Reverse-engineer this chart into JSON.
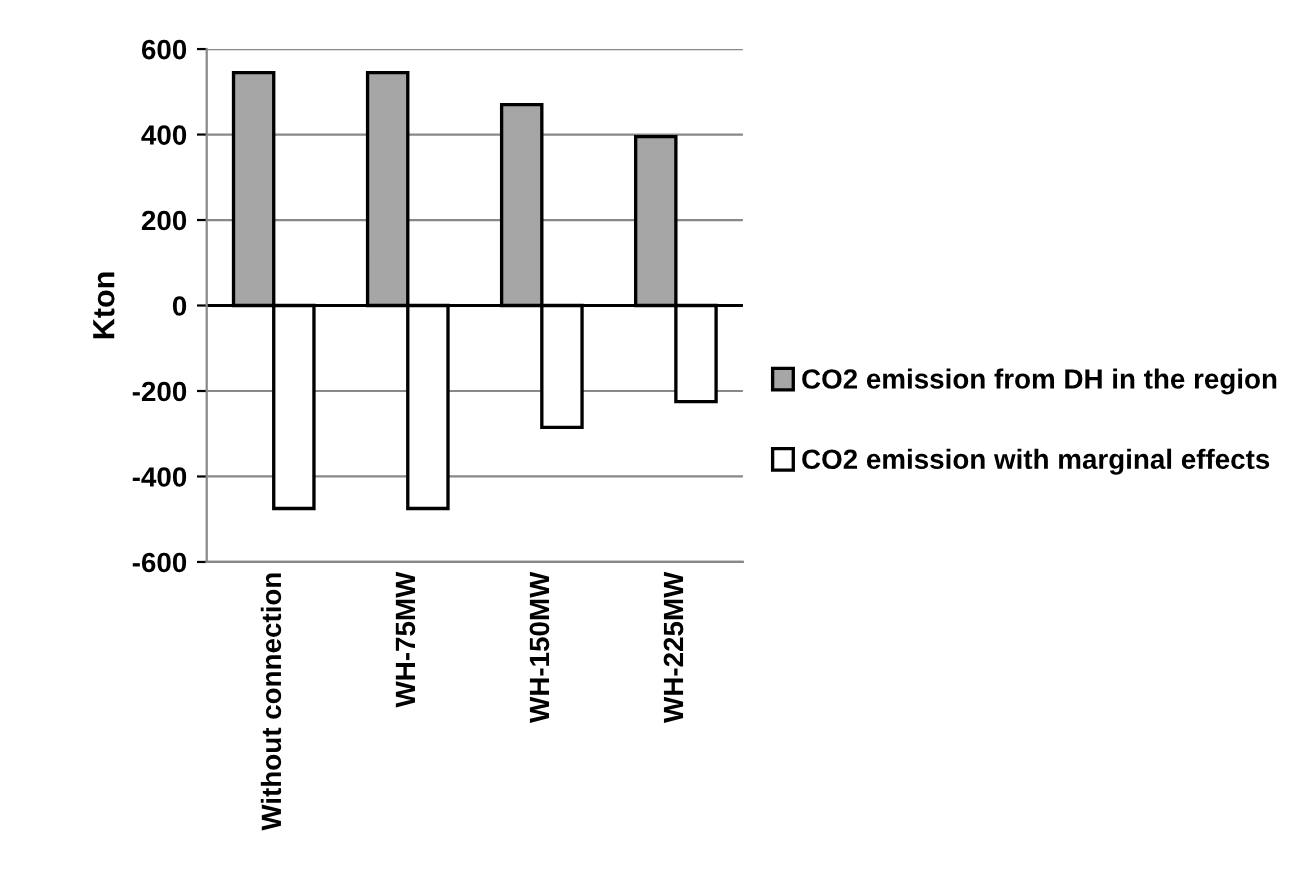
{
  "chart_data": {
    "type": "bar",
    "ylabel": "Kton",
    "categories": [
      "Without connection",
      "WH-75MW",
      "WH-150MW",
      "WH-225MW"
    ],
    "series": [
      {
        "name": "CO2 emission from DH in the region",
        "color": "#a6a6a6",
        "values": [
          545,
          545,
          470,
          395
        ]
      },
      {
        "name": "CO2 emission with marginal effects",
        "color": "#ffffff",
        "values": [
          -475,
          -475,
          -285,
          -225
        ]
      }
    ],
    "ylim": [
      -600,
      600
    ],
    "yticks": [
      -600,
      -400,
      -200,
      0,
      200,
      400,
      600
    ],
    "grid": "y",
    "legend": "right"
  }
}
